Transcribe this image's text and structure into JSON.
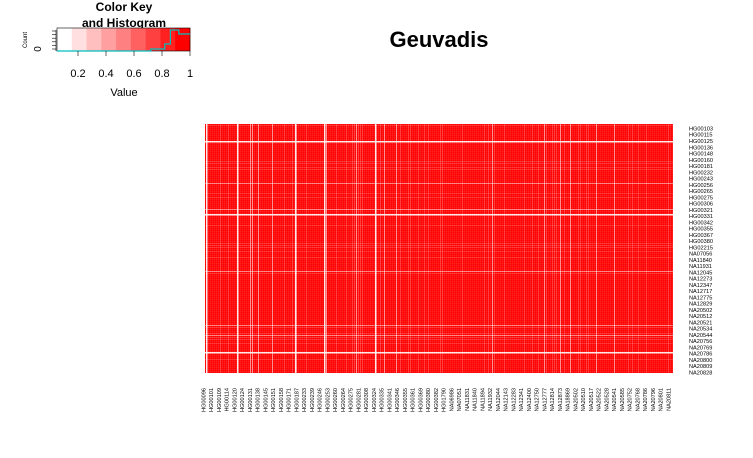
{
  "chart_data": [
    {
      "type": "histogram",
      "title": "Color Key\nand Histogram",
      "xlabel": "Value",
      "ylabel": "Count",
      "xlim": [
        0.05,
        1.0
      ],
      "x_ticks": [
        "0.2",
        "0.4",
        "0.6",
        "0.8",
        "1"
      ],
      "y_ticks": [
        "0"
      ],
      "color_scale": [
        "#ffffff",
        "#ff0000"
      ],
      "histogram_line_color": "#00bfbf"
    },
    {
      "type": "heatmap",
      "title": "Geuvadis",
      "cell_color": "#ff0000",
      "row_labels": [
        "HG00103",
        "HG00115",
        "HG00125",
        "HG00136",
        "HG00148",
        "HG00160",
        "HG00181",
        "HG00232",
        "HG00243",
        "HG00256",
        "HG00265",
        "HG00275",
        "HG00306",
        "HG00321",
        "HG00331",
        "HG00342",
        "HG00355",
        "HG00367",
        "HG00380",
        "HG02215",
        "NA07056",
        "NA11840",
        "NA11931",
        "NA12045",
        "NA12273",
        "NA12347",
        "NA12717",
        "NA12775",
        "NA12829",
        "NA20502",
        "NA20512",
        "NA20521",
        "NA20534",
        "NA20544",
        "NA20756",
        "NA20769",
        "NA20786",
        "NA20800",
        "NA20809",
        "NA20828"
      ],
      "col_labels": [
        "HG00096",
        "HG00101",
        "HG00109",
        "HG00114",
        "HG00120",
        "HG00124",
        "HG00131",
        "HG00138",
        "HG00145",
        "HG00151",
        "HG00158",
        "HG00171",
        "HG00187",
        "HG00233",
        "HG00239",
        "HG00246",
        "HG00253",
        "HG00260",
        "HG00264",
        "HG00275",
        "HG00281",
        "HG00308",
        "HG00324",
        "HG00335",
        "HG00341",
        "HG00346",
        "HG00355",
        "HG00361",
        "HG00369",
        "HG00380",
        "HG00382",
        "HG01790",
        "NA06986",
        "NA07051",
        "NA11831",
        "NA11840",
        "NA11894",
        "NA11932",
        "NA12044",
        "NA12143",
        "NA12283",
        "NA12341",
        "NA12400",
        "NA12750",
        "NA12777",
        "NA12814",
        "NA12873",
        "NA18869",
        "NA20502",
        "NA20510",
        "NA20517",
        "NA20522",
        "NA20528",
        "NA20541",
        "NA20585",
        "NA20752",
        "NA20768",
        "NA20786",
        "NA20796",
        "NA20801",
        "NA20811"
      ]
    }
  ]
}
